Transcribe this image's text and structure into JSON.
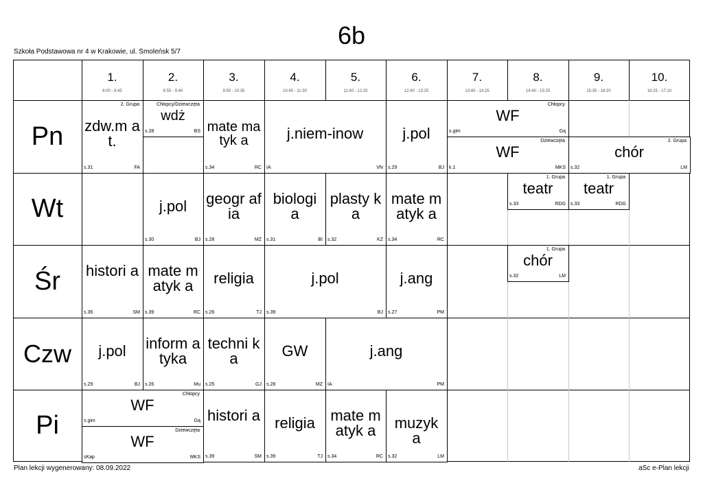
{
  "title": "6b",
  "school": "Szkoła Podstawowa nr 4 w Krakowie, ul. Smoleńsk 5/7",
  "footer_left": "Plan lekcji wygenerowany: 08.09.2022",
  "footer_right": "aSc e-Plan lekcji",
  "periods": [
    {
      "num": "1.",
      "time": "8:00 - 8:45"
    },
    {
      "num": "2.",
      "time": "8:55 - 9:40"
    },
    {
      "num": "3.",
      "time": "9:50 - 10:35"
    },
    {
      "num": "4.",
      "time": "10:45 - 11:30"
    },
    {
      "num": "5.",
      "time": "11:40 - 12:25"
    },
    {
      "num": "6.",
      "time": "12:40 - 13:25"
    },
    {
      "num": "7.",
      "time": "13:40 - 14:25"
    },
    {
      "num": "8.",
      "time": "14:40 - 15:25"
    },
    {
      "num": "9.",
      "time": "15:35 - 16:20"
    },
    {
      "num": "10.",
      "time": "16:25 - 17:10"
    }
  ],
  "days": [
    "Pn",
    "Wt",
    "Śr",
    "Czw",
    "Pi"
  ],
  "lessons": [
    {
      "subject": "zdw.m at.",
      "room": "s.31",
      "teacher": "FA",
      "group": "2. Grupa"
    },
    {
      "subject": "wdż",
      "room": "s.28",
      "teacher": "BS",
      "group": "Chłopcy/Dziewczęta"
    },
    {
      "subject": "mate matyk a",
      "room": "s.34",
      "teacher": "RC"
    },
    {
      "subject": "j.niem-inow",
      "room": "IA",
      "teacher": "VN"
    },
    {
      "subject": "j.pol",
      "room": "s.29",
      "teacher": "BJ"
    },
    {
      "subject": "WF",
      "room": "s.gim",
      "teacher": "Gą",
      "group": "Chłopcy"
    },
    {
      "subject": "WF",
      "room": "k.1",
      "teacher": "MKS",
      "group": "Dziewczęta"
    },
    {
      "subject": "chór",
      "room": "s.32",
      "teacher": "LM",
      "group": "2. Grupa"
    },
    {
      "subject": "j.pol",
      "room": "s.30",
      "teacher": "BJ"
    },
    {
      "subject": "geogr afia",
      "room": "s.28",
      "teacher": "MZ"
    },
    {
      "subject": "biologi a",
      "room": "s.31",
      "teacher": "BI"
    },
    {
      "subject": "plasty ka",
      "room": "s.32",
      "teacher": "KZ"
    },
    {
      "subject": "mate matyk a",
      "room": "s.34",
      "teacher": "RC"
    },
    {
      "subject": "teatr",
      "room": "s.33",
      "teacher": "RDG",
      "group": "1. Grupa"
    },
    {
      "subject": "teatr",
      "room": "s.33",
      "teacher": "RDG",
      "group": "1. Grupa"
    },
    {
      "subject": "histori a",
      "room": "s.36",
      "teacher": "SM"
    },
    {
      "subject": "mate matyk a",
      "room": "s.39",
      "teacher": "RC"
    },
    {
      "subject": "religia",
      "room": "s.26",
      "teacher": "TJ"
    },
    {
      "subject": "j.pol",
      "room": "s.39",
      "teacher": "BJ"
    },
    {
      "subject": "j.ang",
      "room": "s.27",
      "teacher": "PM"
    },
    {
      "subject": "chór",
      "room": "s.32",
      "teacher": "LM",
      "group": "1. Grupa"
    },
    {
      "subject": "j.pol",
      "room": "s.29",
      "teacher": "BJ"
    },
    {
      "subject": "inform atyka",
      "room": "s.26",
      "teacher": "Mu"
    },
    {
      "subject": "techni ka",
      "room": "s.25",
      "teacher": "GJ"
    },
    {
      "subject": "GW",
      "room": "s.28",
      "teacher": "MZ"
    },
    {
      "subject": "j.ang",
      "room": "IA",
      "teacher": "PM"
    },
    {
      "subject": "WF",
      "room": "s.gim",
      "teacher": "Gą",
      "group": "Chłopcy"
    },
    {
      "subject": "WF",
      "room": "sKap",
      "teacher": "MKS",
      "group": "Dziewczęta"
    },
    {
      "subject": "histori a",
      "room": "s.39",
      "teacher": "SM"
    },
    {
      "subject": "religia",
      "room": "s.39",
      "teacher": "TJ"
    },
    {
      "subject": "mate matyk a",
      "room": "s.34",
      "teacher": "RC"
    },
    {
      "subject": "muzyk a",
      "room": "s.32",
      "teacher": "LM"
    }
  ]
}
